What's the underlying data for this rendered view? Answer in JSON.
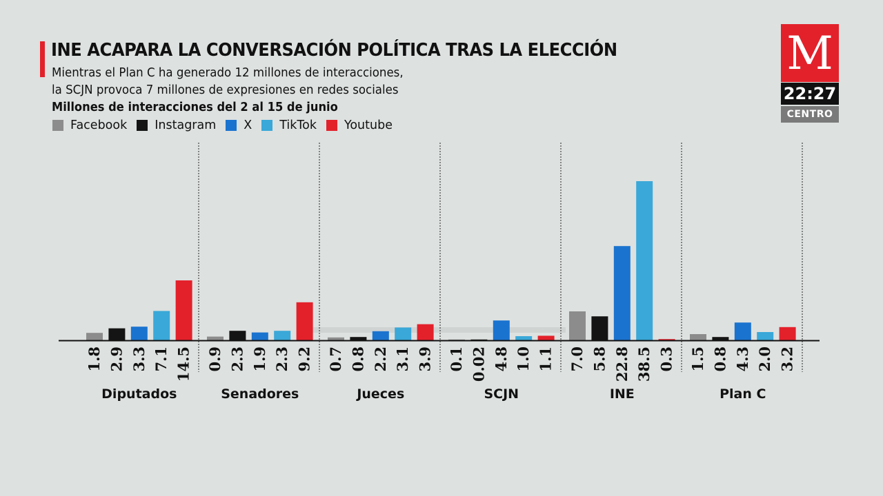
{
  "header": {
    "title": "INE ACAPARA LA CONVERSACIÓN POLÍTICA TRAS LA ELECCIÓN",
    "subtitle_line1": "Mientras el Plan C ha generado 12 millones de interacciones,",
    "subtitle_line2": "la SCJN provoca 7 millones de expresiones en redes sociales",
    "units": "Millones de interacciones del 2 al 15 de junio"
  },
  "branding": {
    "logo_letter": "M",
    "time": "22:27",
    "zone": "CENTRO"
  },
  "colors": {
    "accent": "#e3212b",
    "background": "#dde1e0"
  },
  "chart_data": {
    "type": "bar",
    "title": "INE ACAPARA LA CONVERSACIÓN POLÍTICA TRAS LA ELECCIÓN",
    "ylabel": "Millones de interacciones del 2 al 15 de junio",
    "ylim": [
      0,
      40
    ],
    "legend_position": "top-left",
    "categories": [
      "Diputados",
      "Senadores",
      "Jueces",
      "SCJN",
      "INE",
      "Plan C"
    ],
    "series": [
      {
        "name": "Facebook",
        "color": "#8c8c8c",
        "values": [
          1.8,
          0.9,
          0.7,
          0.1,
          7.0,
          1.5
        ],
        "labels": [
          "1.8",
          "0.9",
          "0.7",
          "0.1",
          "7.0",
          "1.5"
        ]
      },
      {
        "name": "Instagram",
        "color": "#141414",
        "values": [
          2.9,
          2.3,
          0.8,
          0.02,
          5.8,
          0.8
        ],
        "labels": [
          "2.9",
          "2.3",
          "0.8",
          "0.02",
          "5.8",
          "0.8"
        ]
      },
      {
        "name": "X",
        "color": "#1a73cf",
        "values": [
          3.3,
          1.9,
          2.2,
          4.8,
          22.8,
          4.3
        ],
        "labels": [
          "3.3",
          "1.9",
          "2.2",
          "4.8",
          "22.8",
          "4.3"
        ]
      },
      {
        "name": "TikTok",
        "color": "#3aa8d8",
        "values": [
          7.1,
          2.3,
          3.1,
          1.0,
          38.5,
          2.0
        ],
        "labels": [
          "7.1",
          "2.3",
          "3.1",
          "1.0",
          "38.5",
          "2.0"
        ]
      },
      {
        "name": "Youtube",
        "color": "#e3212b",
        "values": [
          14.5,
          9.2,
          3.9,
          1.1,
          0.3,
          3.2
        ],
        "labels": [
          "14.5",
          "9.2",
          "3.9",
          "1.1",
          "0.3",
          "3.2"
        ]
      }
    ]
  }
}
